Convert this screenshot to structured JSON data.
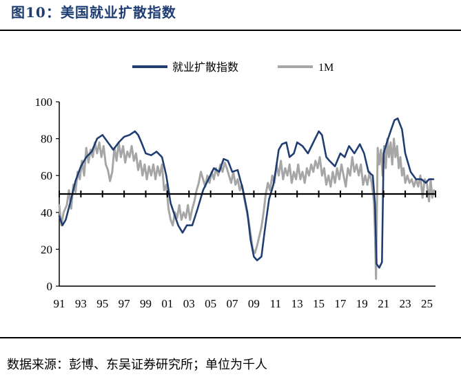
{
  "figure": {
    "title": "图10：美国就业扩散指数",
    "source": "数据来源：彭博、东吴证券研究所；单位为千人"
  },
  "colors": {
    "series1": "#1f3d73",
    "series2": "#a6a6a6",
    "reference_line": "#000000",
    "title": "#1f3d73"
  },
  "chart_data": {
    "type": "line",
    "title": "",
    "xlabel": "",
    "ylabel": "",
    "xlim": [
      1991,
      2025.8
    ],
    "ylim": [
      0,
      100
    ],
    "y_ticks": [
      0,
      20,
      40,
      60,
      80,
      100
    ],
    "x_ticks": [
      {
        "v": 1991,
        "label": "91"
      },
      {
        "v": 1993,
        "label": "93"
      },
      {
        "v": 1995,
        "label": "95"
      },
      {
        "v": 1997,
        "label": "97"
      },
      {
        "v": 1999,
        "label": "99"
      },
      {
        "v": 2001,
        "label": "01"
      },
      {
        "v": 2003,
        "label": "03"
      },
      {
        "v": 2005,
        "label": "05"
      },
      {
        "v": 2007,
        "label": "07"
      },
      {
        "v": 2009,
        "label": "09"
      },
      {
        "v": 2011,
        "label": "11"
      },
      {
        "v": 2013,
        "label": "13"
      },
      {
        "v": 2015,
        "label": "15"
      },
      {
        "v": 2017,
        "label": "17"
      },
      {
        "v": 2019,
        "label": "19"
      },
      {
        "v": 2021,
        "label": "21"
      },
      {
        "v": 2023,
        "label": "23"
      },
      {
        "v": 2025,
        "label": "25"
      }
    ],
    "reference_line": 50,
    "grid": false,
    "legend_position": "top-center",
    "series": [
      {
        "name": "就业扩散指数",
        "points": [
          [
            1991.0,
            38
          ],
          [
            1991.3,
            33
          ],
          [
            1991.6,
            36
          ],
          [
            1992.0,
            45
          ],
          [
            1992.5,
            57
          ],
          [
            1993.0,
            65
          ],
          [
            1993.5,
            70
          ],
          [
            1994.0,
            73
          ],
          [
            1994.5,
            80
          ],
          [
            1995.0,
            82
          ],
          [
            1995.5,
            78
          ],
          [
            1996.0,
            74
          ],
          [
            1996.5,
            78
          ],
          [
            1997.0,
            81
          ],
          [
            1997.5,
            82
          ],
          [
            1998.0,
            84
          ],
          [
            1998.3,
            82
          ],
          [
            1998.6,
            78
          ],
          [
            1999.0,
            72
          ],
          [
            1999.5,
            71
          ],
          [
            2000.0,
            73
          ],
          [
            2000.5,
            70
          ],
          [
            2000.9,
            60
          ],
          [
            2001.3,
            45
          ],
          [
            2001.7,
            38
          ],
          [
            2002.0,
            33
          ],
          [
            2002.4,
            29
          ],
          [
            2002.8,
            33
          ],
          [
            2003.3,
            33
          ],
          [
            2003.8,
            42
          ],
          [
            2004.3,
            52
          ],
          [
            2004.8,
            58
          ],
          [
            2005.3,
            64
          ],
          [
            2005.8,
            62
          ],
          [
            2006.2,
            69
          ],
          [
            2006.6,
            68
          ],
          [
            2007.0,
            62
          ],
          [
            2007.5,
            63
          ],
          [
            2008.0,
            52
          ],
          [
            2008.4,
            40
          ],
          [
            2008.7,
            25
          ],
          [
            2009.0,
            16
          ],
          [
            2009.3,
            14
          ],
          [
            2009.7,
            16
          ],
          [
            2010.0,
            30
          ],
          [
            2010.4,
            47
          ],
          [
            2010.8,
            55
          ],
          [
            2011.0,
            62
          ],
          [
            2011.3,
            74
          ],
          [
            2011.6,
            77
          ],
          [
            2012.0,
            78
          ],
          [
            2012.3,
            70
          ],
          [
            2012.7,
            72
          ],
          [
            2013.0,
            78
          ],
          [
            2013.5,
            76
          ],
          [
            2014.0,
            72
          ],
          [
            2014.5,
            78
          ],
          [
            2015.0,
            84
          ],
          [
            2015.3,
            82
          ],
          [
            2015.7,
            70
          ],
          [
            2016.0,
            68
          ],
          [
            2016.5,
            65
          ],
          [
            2017.0,
            72
          ],
          [
            2017.4,
            70
          ],
          [
            2017.8,
            76
          ],
          [
            2018.3,
            72
          ],
          [
            2018.8,
            77
          ],
          [
            2019.2,
            72
          ],
          [
            2019.6,
            62
          ],
          [
            2020.0,
            60
          ],
          [
            2020.2,
            45
          ],
          [
            2020.35,
            12
          ],
          [
            2020.6,
            10
          ],
          [
            2020.85,
            13
          ],
          [
            2021.0,
            72
          ],
          [
            2021.3,
            78
          ],
          [
            2021.7,
            85
          ],
          [
            2022.0,
            90
          ],
          [
            2022.3,
            91
          ],
          [
            2022.7,
            85
          ],
          [
            2023.0,
            72
          ],
          [
            2023.5,
            62
          ],
          [
            2024.0,
            58
          ],
          [
            2024.5,
            58
          ],
          [
            2024.9,
            56
          ],
          [
            2025.2,
            58
          ],
          [
            2025.6,
            58
          ]
        ]
      },
      {
        "name": "1M",
        "points": [
          [
            1991.0,
            44
          ],
          [
            1991.2,
            33
          ],
          [
            1991.4,
            40
          ],
          [
            1991.7,
            44
          ],
          [
            1991.9,
            52
          ],
          [
            1992.1,
            42
          ],
          [
            1992.3,
            55
          ],
          [
            1992.5,
            51
          ],
          [
            1992.7,
            62
          ],
          [
            1992.9,
            58
          ],
          [
            1993.1,
            68
          ],
          [
            1993.3,
            60
          ],
          [
            1993.5,
            75
          ],
          [
            1993.7,
            67
          ],
          [
            1993.9,
            74
          ],
          [
            1994.1,
            70
          ],
          [
            1994.3,
            78
          ],
          [
            1994.5,
            72
          ],
          [
            1994.7,
            78
          ],
          [
            1994.9,
            70
          ],
          [
            1995.1,
            76
          ],
          [
            1995.3,
            66
          ],
          [
            1995.5,
            63
          ],
          [
            1995.7,
            57
          ],
          [
            1995.9,
            62
          ],
          [
            1996.1,
            75
          ],
          [
            1996.3,
            68
          ],
          [
            1996.5,
            78
          ],
          [
            1996.7,
            70
          ],
          [
            1996.9,
            76
          ],
          [
            1997.1,
            67
          ],
          [
            1997.3,
            73
          ],
          [
            1997.5,
            70
          ],
          [
            1997.7,
            76
          ],
          [
            1997.9,
            68
          ],
          [
            1998.1,
            72
          ],
          [
            1998.3,
            63
          ],
          [
            1998.5,
            68
          ],
          [
            1998.7,
            60
          ],
          [
            1998.9,
            66
          ],
          [
            1999.1,
            58
          ],
          [
            1999.3,
            65
          ],
          [
            1999.5,
            60
          ],
          [
            1999.7,
            66
          ],
          [
            1999.9,
            58
          ],
          [
            2000.1,
            65
          ],
          [
            2000.3,
            60
          ],
          [
            2000.5,
            66
          ],
          [
            2000.7,
            52
          ],
          [
            2000.9,
            55
          ],
          [
            2001.1,
            42
          ],
          [
            2001.3,
            36
          ],
          [
            2001.5,
            33
          ],
          [
            2001.7,
            40
          ],
          [
            2001.9,
            37
          ],
          [
            2002.1,
            44
          ],
          [
            2002.3,
            36
          ],
          [
            2002.5,
            40
          ],
          [
            2002.7,
            37
          ],
          [
            2002.9,
            44
          ],
          [
            2003.1,
            36
          ],
          [
            2003.3,
            42
          ],
          [
            2003.5,
            46
          ],
          [
            2003.7,
            52
          ],
          [
            2003.9,
            56
          ],
          [
            2004.1,
            62
          ],
          [
            2004.3,
            58
          ],
          [
            2004.5,
            54
          ],
          [
            2004.7,
            60
          ],
          [
            2004.9,
            56
          ],
          [
            2005.1,
            62
          ],
          [
            2005.3,
            58
          ],
          [
            2005.5,
            64
          ],
          [
            2005.7,
            60
          ],
          [
            2005.9,
            66
          ],
          [
            2006.1,
            62
          ],
          [
            2006.3,
            67
          ],
          [
            2006.5,
            64
          ],
          [
            2006.7,
            60
          ],
          [
            2006.9,
            56
          ],
          [
            2007.1,
            62
          ],
          [
            2007.3,
            55
          ],
          [
            2007.5,
            58
          ],
          [
            2007.7,
            52
          ],
          [
            2007.9,
            55
          ],
          [
            2008.1,
            48
          ],
          [
            2008.3,
            42
          ],
          [
            2008.5,
            36
          ],
          [
            2008.7,
            28
          ],
          [
            2008.9,
            20
          ],
          [
            2009.1,
            18
          ],
          [
            2009.3,
            22
          ],
          [
            2009.5,
            27
          ],
          [
            2009.7,
            32
          ],
          [
            2009.9,
            40
          ],
          [
            2010.1,
            50
          ],
          [
            2010.3,
            56
          ],
          [
            2010.5,
            52
          ],
          [
            2010.7,
            60
          ],
          [
            2010.9,
            56
          ],
          [
            2011.1,
            66
          ],
          [
            2011.3,
            60
          ],
          [
            2011.5,
            68
          ],
          [
            2011.7,
            58
          ],
          [
            2011.9,
            64
          ],
          [
            2012.1,
            60
          ],
          [
            2012.3,
            66
          ],
          [
            2012.5,
            56
          ],
          [
            2012.7,
            62
          ],
          [
            2012.9,
            58
          ],
          [
            2013.1,
            66
          ],
          [
            2013.3,
            58
          ],
          [
            2013.5,
            62
          ],
          [
            2013.7,
            56
          ],
          [
            2013.9,
            64
          ],
          [
            2014.1,
            60
          ],
          [
            2014.3,
            66
          ],
          [
            2014.5,
            62
          ],
          [
            2014.7,
            68
          ],
          [
            2014.9,
            64
          ],
          [
            2015.1,
            70
          ],
          [
            2015.3,
            60
          ],
          [
            2015.5,
            64
          ],
          [
            2015.7,
            55
          ],
          [
            2015.9,
            60
          ],
          [
            2016.1,
            54
          ],
          [
            2016.3,
            62
          ],
          [
            2016.5,
            56
          ],
          [
            2016.7,
            64
          ],
          [
            2016.9,
            58
          ],
          [
            2017.1,
            66
          ],
          [
            2017.3,
            60
          ],
          [
            2017.5,
            54
          ],
          [
            2017.7,
            64
          ],
          [
            2017.9,
            60
          ],
          [
            2018.1,
            70
          ],
          [
            2018.3,
            62
          ],
          [
            2018.5,
            66
          ],
          [
            2018.7,
            60
          ],
          [
            2018.9,
            66
          ],
          [
            2019.1,
            55
          ],
          [
            2019.3,
            60
          ],
          [
            2019.5,
            55
          ],
          [
            2019.7,
            62
          ],
          [
            2019.9,
            56
          ],
          [
            2020.1,
            46
          ],
          [
            2020.2,
            30
          ],
          [
            2020.3,
            4
          ],
          [
            2020.45,
            75
          ],
          [
            2020.6,
            66
          ],
          [
            2020.75,
            74
          ],
          [
            2020.9,
            60
          ],
          [
            2021.05,
            76
          ],
          [
            2021.2,
            64
          ],
          [
            2021.35,
            80
          ],
          [
            2021.5,
            70
          ],
          [
            2021.65,
            78
          ],
          [
            2021.8,
            66
          ],
          [
            2021.95,
            80
          ],
          [
            2022.1,
            70
          ],
          [
            2022.25,
            76
          ],
          [
            2022.4,
            64
          ],
          [
            2022.55,
            70
          ],
          [
            2022.7,
            60
          ],
          [
            2022.85,
            64
          ],
          [
            2023.0,
            56
          ],
          [
            2023.2,
            60
          ],
          [
            2023.4,
            56
          ],
          [
            2023.6,
            58
          ],
          [
            2023.8,
            54
          ],
          [
            2024.0,
            58
          ],
          [
            2024.2,
            54
          ],
          [
            2024.4,
            60
          ],
          [
            2024.6,
            48
          ],
          [
            2024.8,
            58
          ],
          [
            2025.0,
            56
          ],
          [
            2025.2,
            46
          ],
          [
            2025.35,
            58
          ],
          [
            2025.5,
            48
          ],
          [
            2025.65,
            52
          ]
        ]
      }
    ]
  }
}
